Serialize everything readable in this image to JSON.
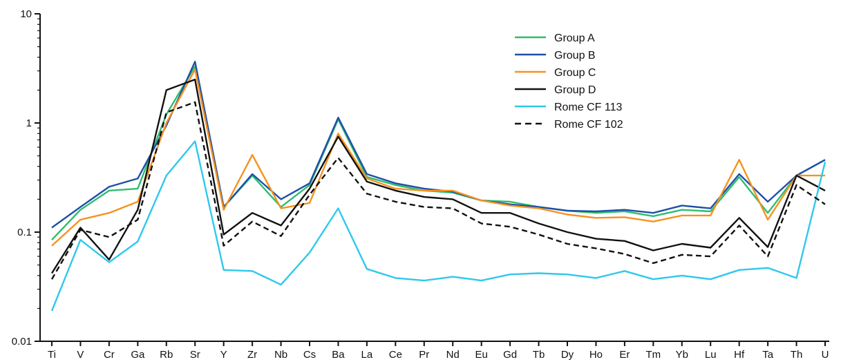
{
  "chart_data": {
    "type": "line",
    "title": "",
    "xlabel": "",
    "ylabel": "",
    "y_scale": "log",
    "ylim": [
      0.01,
      10
    ],
    "y_ticks": [
      "10",
      "1",
      "0.1",
      "0.01"
    ],
    "y_tick_values": [
      10,
      1,
      0.1,
      0.01
    ],
    "grid": false,
    "legend_position": "top-right",
    "categories": [
      "Ti",
      "V",
      "Cr",
      "Ga",
      "Rb",
      "Sr",
      "Y",
      "Zr",
      "Nb",
      "Cs",
      "Ba",
      "La",
      "Ce",
      "Pr",
      "Nd",
      "Eu",
      "Gd",
      "Tb",
      "Dy",
      "Ho",
      "Er",
      "Tm",
      "Yb",
      "Lu",
      "Hf",
      "Ta",
      "Th",
      "U"
    ],
    "series": [
      {
        "name": "Group A",
        "color": "#2dbd6e",
        "dash": false,
        "values": [
          0.085,
          0.16,
          0.24,
          0.25,
          1.2,
          3.3,
          0.17,
          0.33,
          0.17,
          0.27,
          1.08,
          0.32,
          0.27,
          0.24,
          0.23,
          0.195,
          0.19,
          0.17,
          0.157,
          0.15,
          0.155,
          0.14,
          0.16,
          0.155,
          0.32,
          0.15,
          0.33,
          0.46
        ]
      },
      {
        "name": "Group B",
        "color": "#1f4fa8",
        "dash": false,
        "values": [
          0.11,
          0.17,
          0.26,
          0.31,
          0.95,
          3.65,
          0.17,
          0.34,
          0.2,
          0.28,
          1.12,
          0.34,
          0.28,
          0.25,
          0.235,
          0.195,
          0.18,
          0.17,
          0.157,
          0.155,
          0.16,
          0.15,
          0.175,
          0.165,
          0.34,
          0.19,
          0.33,
          0.46
        ]
      },
      {
        "name": "Group C",
        "color": "#f5921e",
        "dash": false,
        "values": [
          0.075,
          0.13,
          0.15,
          0.19,
          1.0,
          3.1,
          0.16,
          0.51,
          0.165,
          0.185,
          0.8,
          0.31,
          0.25,
          0.24,
          0.24,
          0.195,
          0.175,
          0.165,
          0.145,
          0.135,
          0.137,
          0.125,
          0.142,
          0.142,
          0.46,
          0.13,
          0.33,
          0.33
        ]
      },
      {
        "name": "Group D",
        "color": "#111111",
        "dash": false,
        "values": [
          0.042,
          0.11,
          0.056,
          0.16,
          2.0,
          2.5,
          0.095,
          0.15,
          0.115,
          0.25,
          0.75,
          0.29,
          0.24,
          0.21,
          0.2,
          0.15,
          0.15,
          0.12,
          0.1,
          0.087,
          0.083,
          0.068,
          0.078,
          0.072,
          0.135,
          0.073,
          0.33,
          0.24
        ]
      },
      {
        "name": "Rome CF 113",
        "color": "#2ec8ec",
        "dash": false,
        "values": [
          0.019,
          0.085,
          0.053,
          0.082,
          0.33,
          0.68,
          0.045,
          0.044,
          0.033,
          0.065,
          0.165,
          0.046,
          0.038,
          0.036,
          0.039,
          0.036,
          0.041,
          0.042,
          0.041,
          0.038,
          0.044,
          0.037,
          0.04,
          0.037,
          0.045,
          0.047,
          0.038,
          0.44
        ]
      },
      {
        "name": "Rome CF 102",
        "color": "#111111",
        "dash": true,
        "values": [
          0.037,
          0.105,
          0.09,
          0.13,
          1.25,
          1.55,
          0.075,
          0.125,
          0.092,
          0.22,
          0.48,
          0.225,
          0.19,
          0.17,
          0.165,
          0.12,
          0.112,
          0.095,
          0.078,
          0.071,
          0.063,
          0.052,
          0.062,
          0.06,
          0.115,
          0.06,
          0.27,
          0.18
        ]
      }
    ]
  }
}
